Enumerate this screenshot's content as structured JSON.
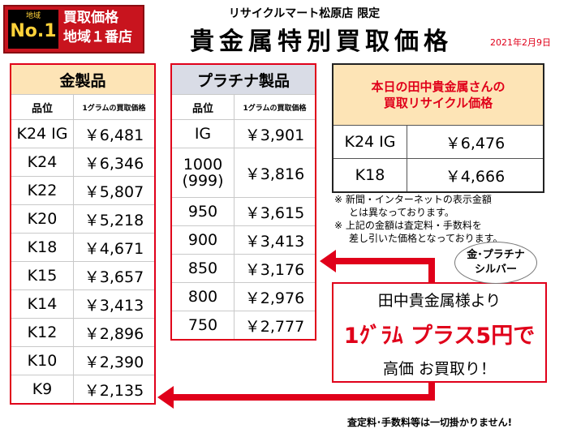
{
  "badge": {
    "area": "地域",
    "no1": "No.1",
    "line1": "買取価格",
    "line2": "地域１番店"
  },
  "header": {
    "store": "リサイクルマート松原店 限定",
    "title": "貴金属特別買取価格",
    "date": "2021年2月9日"
  },
  "gold_table": {
    "title": "金製品",
    "col1": "品位",
    "col2": "1グラムの買取価格",
    "rows": [
      {
        "grade": "K24 IG",
        "price": "￥6,481"
      },
      {
        "grade": "K24",
        "price": "￥6,346"
      },
      {
        "grade": "K22",
        "price": "￥5,807"
      },
      {
        "grade": "K20",
        "price": "￥5,218"
      },
      {
        "grade": "K18",
        "price": "￥4,671"
      },
      {
        "grade": "K15",
        "price": "￥3,657"
      },
      {
        "grade": "K14",
        "price": "￥3,413"
      },
      {
        "grade": "K12",
        "price": "￥2,896"
      },
      {
        "grade": "K10",
        "price": "￥2,390"
      },
      {
        "grade": "K9",
        "price": "￥2,135"
      }
    ]
  },
  "platinum_table": {
    "title": "プラチナ製品",
    "col1": "品位",
    "col2": "1グラムの買取価格",
    "rows": [
      {
        "grade": "IG",
        "grade2": "",
        "price": "￥3,901"
      },
      {
        "grade": "1000",
        "grade2": "(999)",
        "price": "￥3,816"
      },
      {
        "grade": "950",
        "grade2": "",
        "price": "￥3,615"
      },
      {
        "grade": "900",
        "grade2": "",
        "price": "￥3,413"
      },
      {
        "grade": "850",
        "grade2": "",
        "price": "￥3,176"
      },
      {
        "grade": "800",
        "grade2": "",
        "price": "￥2,976"
      },
      {
        "grade": "750",
        "grade2": "",
        "price": "￥2,777"
      }
    ]
  },
  "tanaka": {
    "title1": "本日の田中貴金属さんの",
    "title2": "買取リサイクル価格",
    "rows": [
      {
        "grade": "K24 IG",
        "price": "￥6,476"
      },
      {
        "grade": "K18",
        "price": "￥4,666"
      }
    ]
  },
  "notes": {
    "n1a": "※ 新聞・インターネットの表示金額",
    "n1b": "とは異なっております。",
    "n2a": "※ 上記の金額は査定料・手数料を",
    "n2b": "差し引いた価格となっております。"
  },
  "bubble": {
    "line1": "金･プラチナ",
    "line2": "シルバー"
  },
  "callout": {
    "line1": "田中貴金属様より",
    "line2": "1ｸﾞﾗﾑ プラス5円で",
    "line3": "高価 お買取り！"
  },
  "footer": "査定料･手数料等は一切掛かりません!",
  "colors": {
    "accent": "#e0001a",
    "gold_header": "#fde4b6",
    "plat_header": "#d9dce6"
  }
}
